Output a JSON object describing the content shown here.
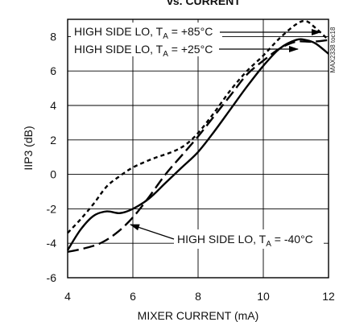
{
  "chart_data": {
    "type": "line",
    "title": "vs. CURRENT",
    "xlabel": "MIXER CURRENT (mA)",
    "ylabel": "IIP3 (dB)",
    "xlim": [
      4,
      12
    ],
    "ylim": [
      -6,
      9
    ],
    "x_ticks": [
      "4",
      "6",
      "8",
      "10",
      "12"
    ],
    "y_ticks": [
      "-6",
      "-4",
      "-2",
      "0",
      "2",
      "4",
      "6",
      "8"
    ],
    "grid": true,
    "watermark": "MAX2338 toc18",
    "series": [
      {
        "name": "HIGH SIDE LO, TA = +85°C",
        "label_parts": [
          "HIGH SIDE LO, T",
          "A",
          " = +85°C"
        ],
        "style": "dotted",
        "x": [
          4,
          4.4,
          4.8,
          5.2,
          5.6,
          6,
          6.6,
          7.2,
          7.6,
          8,
          8.5,
          9,
          9.5,
          10,
          10.5,
          11,
          11.3,
          11.6,
          12
        ],
        "y": [
          -3.4,
          -2.6,
          -1.7,
          -0.7,
          -0.1,
          0.4,
          0.9,
          1.3,
          1.7,
          2.4,
          3.6,
          4.9,
          6.0,
          6.9,
          7.9,
          8.7,
          8.9,
          8.5,
          7.8
        ]
      },
      {
        "name": "HIGH SIDE LO, TA = +25°C",
        "label_parts": [
          "HIGH SIDE LO, T",
          "A",
          " = +25°C"
        ],
        "style": "dashed",
        "x": [
          4,
          4.5,
          5,
          5.5,
          6,
          6.5,
          7,
          7.5,
          8,
          8.5,
          9,
          9.5,
          10,
          10.5,
          11,
          11.5,
          12
        ],
        "y": [
          -4.5,
          -4.3,
          -4.0,
          -3.4,
          -2.5,
          -1.3,
          0.0,
          1.1,
          2.2,
          3.4,
          4.6,
          5.8,
          6.6,
          7.3,
          7.7,
          7.7,
          7.8
        ]
      },
      {
        "name": "HIGH SIDE LO, TA = -40°C",
        "label_parts": [
          "HIGH SIDE LO, T",
          "A",
          " = -40°C"
        ],
        "style": "solid",
        "x": [
          4,
          4.4,
          4.8,
          5.2,
          5.6,
          6,
          6.5,
          7,
          7.5,
          8,
          8.5,
          9,
          9.5,
          10,
          10.5,
          11,
          11.3,
          11.6,
          12
        ],
        "y": [
          -4.4,
          -3.2,
          -2.4,
          -2.15,
          -2.25,
          -2.0,
          -1.4,
          -0.5,
          0.4,
          1.3,
          2.5,
          3.8,
          5.1,
          6.3,
          7.3,
          7.8,
          7.8,
          7.6,
          7.0
        ]
      }
    ]
  }
}
